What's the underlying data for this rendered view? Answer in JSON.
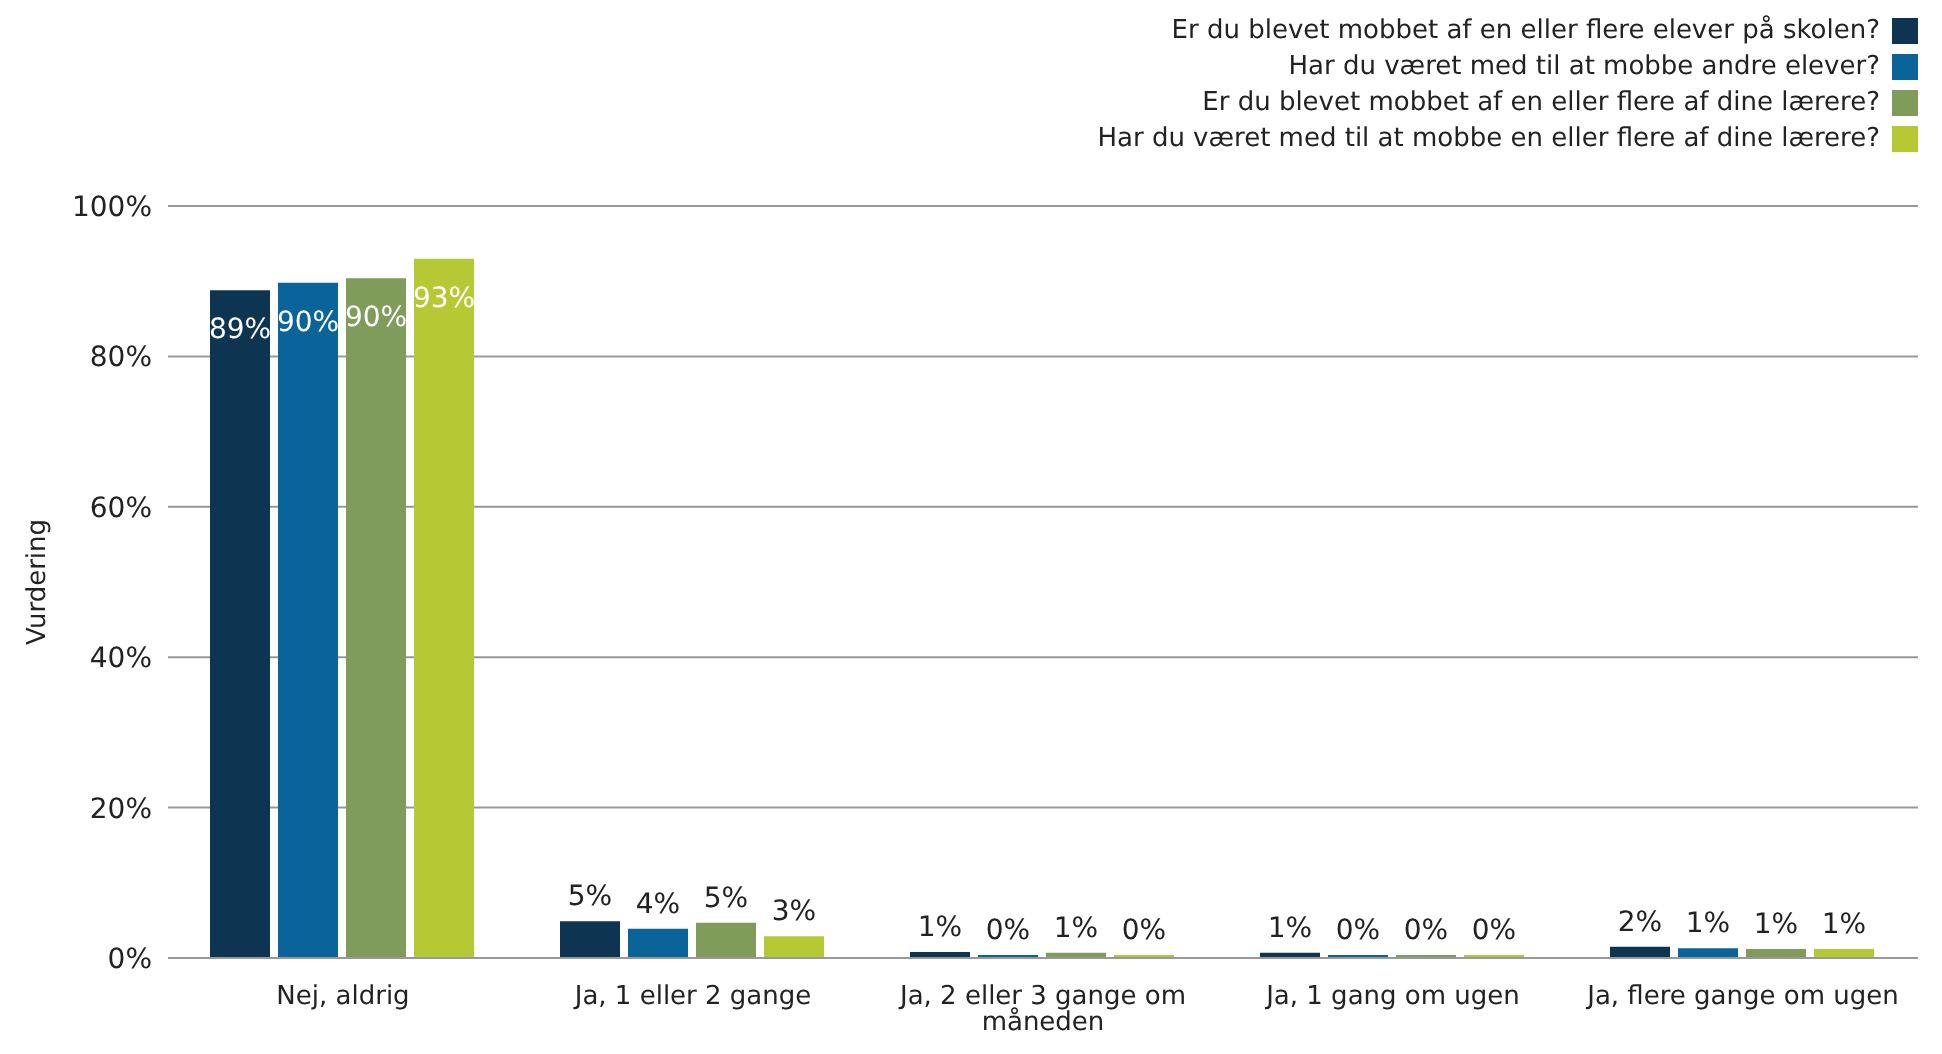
{
  "chart_data": {
    "type": "bar",
    "ylabel": "Vurdering",
    "categories": [
      "Nej, aldrig",
      "Ja, 1 eller 2 gange",
      "Ja, 2 eller 3 gange om måneden",
      "Ja, 1 gang om ugen",
      "Ja, flere gange om ugen"
    ],
    "series": [
      {
        "name": "Er du blevet mobbet af en eller flere elever på skolen?",
        "color": "#0d3552",
        "values": [
          88.8,
          4.9,
          0.8,
          0.7,
          1.5
        ],
        "value_labels": [
          "89%",
          "5%",
          "1%",
          "1%",
          "2%"
        ]
      },
      {
        "name": "Har du været med til at mobbe andre elever?",
        "color": "#0a6399",
        "values": [
          89.8,
          3.9,
          0.4,
          0.4,
          1.3
        ],
        "value_labels": [
          "90%",
          "4%",
          "0%",
          "0%",
          "1%"
        ]
      },
      {
        "name": "Er du blevet mobbet af en eller flere af dine lærere?",
        "color": "#7f9c5a",
        "values": [
          90.4,
          4.7,
          0.7,
          0.4,
          1.2
        ],
        "value_labels": [
          "90%",
          "5%",
          "1%",
          "0%",
          "1%"
        ]
      },
      {
        "name": "Har du været med til at mobbe en eller flere af dine lærere?",
        "color": "#b5c934",
        "values": [
          93.0,
          2.9,
          0.4,
          0.4,
          1.2
        ],
        "value_labels": [
          "93%",
          "3%",
          "0%",
          "0%",
          "1%"
        ]
      }
    ],
    "ylim": [
      0,
      100
    ],
    "yticks": [
      {
        "value": 0,
        "label": "0%"
      },
      {
        "value": 20,
        "label": "20%"
      },
      {
        "value": 40,
        "label": "40%"
      },
      {
        "value": 60,
        "label": "60%"
      },
      {
        "value": 80,
        "label": "80%"
      },
      {
        "value": 100,
        "label": "100%"
      }
    ],
    "grid": "y",
    "legend": "top right"
  }
}
